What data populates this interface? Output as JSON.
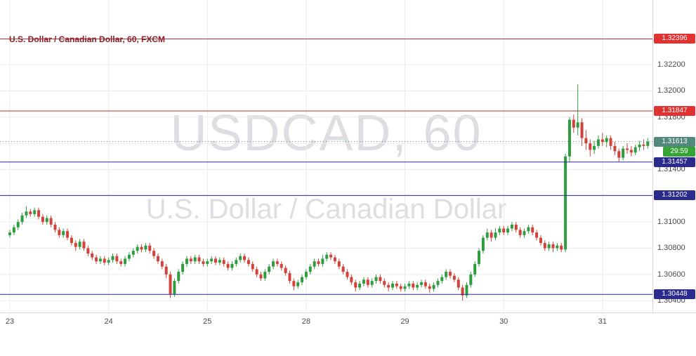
{
  "header": {
    "title": "U.S. Dollar / Canadian Dollar, 60, FXCM"
  },
  "watermark": {
    "line1": "USDCAD, 60",
    "line2": "U.S. Dollar / Canadian Dollar"
  },
  "colors": {
    "up_candle": "#2f9c3f",
    "down_candle": "#d2423a",
    "resistance_line": "#b03232",
    "resistance_badge": "#e13232",
    "support_line": "#2b2b8e",
    "support_badge": "#2b2b8e",
    "current_line": "#4d8b80",
    "current_badge": "#52897c",
    "countdown_badge": "#36a336",
    "grid": "#ececec",
    "axis_text": "#4a4a4a",
    "title_text": "#8a1f28",
    "watermark": "#dcdee1"
  },
  "chart_data": {
    "type": "candlestick",
    "symbol": "USDCAD",
    "timeframe": "60",
    "exchange": "FXCM",
    "title": "U.S. Dollar / Canadian Dollar, 60, FXCM",
    "price_range": [
      1.3031,
      1.32693
    ],
    "y_ticks": [
      1.322,
      1.32,
      1.318,
      1.316,
      1.314,
      1.312,
      1.31,
      1.308,
      1.306,
      1.304
    ],
    "x_tick_labels": [
      "23",
      "24",
      "25",
      "28",
      "29",
      "30",
      "31"
    ],
    "x_tick_indices": [
      0,
      24,
      48,
      72,
      96,
      120,
      144
    ],
    "levels": [
      {
        "label": "1.32396",
        "price": 1.32396,
        "type": "resistance"
      },
      {
        "label": "1.31847",
        "price": 1.31847,
        "type": "resistance"
      },
      {
        "label": "1.31457",
        "price": 1.31457,
        "type": "support"
      },
      {
        "label": "1.31202",
        "price": 1.31202,
        "type": "support"
      },
      {
        "label": "1.30448",
        "price": 1.30448,
        "type": "support"
      }
    ],
    "current_price": {
      "value": 1.31613,
      "label": "1.31613",
      "countdown": "29:59"
    },
    "candles": [
      [
        1.309,
        1.3094,
        1.3088,
        1.3092
      ],
      [
        1.3092,
        1.3098,
        1.309,
        1.3096
      ],
      [
        1.3096,
        1.3102,
        1.3094,
        1.31
      ],
      [
        1.31,
        1.3107,
        1.3098,
        1.3105
      ],
      [
        1.3105,
        1.3112,
        1.3103,
        1.3108
      ],
      [
        1.3108,
        1.311,
        1.3104,
        1.3106
      ],
      [
        1.3106,
        1.3111,
        1.3104,
        1.3109
      ],
      [
        1.3109,
        1.3111,
        1.3102,
        1.3104
      ],
      [
        1.3104,
        1.3106,
        1.3098,
        1.31
      ],
      [
        1.31,
        1.3105,
        1.3098,
        1.3103
      ],
      [
        1.3103,
        1.3105,
        1.3096,
        1.3098
      ],
      [
        1.3098,
        1.31,
        1.3092,
        1.3094
      ],
      [
        1.3094,
        1.3096,
        1.3088,
        1.309
      ],
      [
        1.309,
        1.3095,
        1.3088,
        1.3093
      ],
      [
        1.3093,
        1.3095,
        1.3086,
        1.3088
      ],
      [
        1.3088,
        1.309,
        1.3082,
        1.3084
      ],
      [
        1.3084,
        1.3086,
        1.3078,
        1.3081
      ],
      [
        1.3081,
        1.3087,
        1.3079,
        1.3085
      ],
      [
        1.3085,
        1.3087,
        1.3078,
        1.308
      ],
      [
        1.308,
        1.3082,
        1.3074,
        1.3076
      ],
      [
        1.3076,
        1.3078,
        1.3071,
        1.3073
      ],
      [
        1.3073,
        1.3075,
        1.3068,
        1.307
      ],
      [
        1.307,
        1.3074,
        1.3068,
        1.3072
      ],
      [
        1.3072,
        1.3074,
        1.3067,
        1.3069
      ],
      [
        1.3069,
        1.3073,
        1.3067,
        1.3071
      ],
      [
        1.3071,
        1.3076,
        1.3069,
        1.3074
      ],
      [
        1.3074,
        1.3076,
        1.3068,
        1.307
      ],
      [
        1.307,
        1.3072,
        1.3066,
        1.3068
      ],
      [
        1.3068,
        1.3074,
        1.3066,
        1.3072
      ],
      [
        1.3072,
        1.3077,
        1.307,
        1.3075
      ],
      [
        1.3075,
        1.308,
        1.3073,
        1.3078
      ],
      [
        1.3078,
        1.3083,
        1.3076,
        1.3081
      ],
      [
        1.3081,
        1.3083,
        1.3077,
        1.3079
      ],
      [
        1.3079,
        1.3084,
        1.3077,
        1.3082
      ],
      [
        1.3082,
        1.3084,
        1.3076,
        1.3078
      ],
      [
        1.3078,
        1.308,
        1.3072,
        1.3074
      ],
      [
        1.3074,
        1.3076,
        1.3068,
        1.307
      ],
      [
        1.307,
        1.3072,
        1.3064,
        1.3066
      ],
      [
        1.3066,
        1.3068,
        1.3057,
        1.306
      ],
      [
        1.306,
        1.3062,
        1.3042,
        1.3045
      ],
      [
        1.3045,
        1.3057,
        1.3043,
        1.3055
      ],
      [
        1.3055,
        1.3064,
        1.3053,
        1.3062
      ],
      [
        1.3062,
        1.307,
        1.306,
        1.3068
      ],
      [
        1.3068,
        1.3074,
        1.3066,
        1.3072
      ],
      [
        1.3072,
        1.3074,
        1.3068,
        1.307
      ],
      [
        1.307,
        1.3075,
        1.3068,
        1.3073
      ],
      [
        1.3073,
        1.3075,
        1.3068,
        1.307
      ],
      [
        1.307,
        1.3072,
        1.3066,
        1.3068
      ],
      [
        1.3068,
        1.3072,
        1.3066,
        1.307
      ],
      [
        1.307,
        1.3074,
        1.3068,
        1.3072
      ],
      [
        1.3072,
        1.3074,
        1.3067,
        1.3069
      ],
      [
        1.3069,
        1.3073,
        1.3067,
        1.3071
      ],
      [
        1.3071,
        1.3073,
        1.3066,
        1.3068
      ],
      [
        1.3068,
        1.307,
        1.3063,
        1.3065
      ],
      [
        1.3065,
        1.307,
        1.3063,
        1.3068
      ],
      [
        1.3068,
        1.3073,
        1.3066,
        1.3071
      ],
      [
        1.3071,
        1.3076,
        1.3069,
        1.3074
      ],
      [
        1.3074,
        1.3076,
        1.3069,
        1.3071
      ],
      [
        1.3071,
        1.3073,
        1.3066,
        1.3068
      ],
      [
        1.3068,
        1.307,
        1.3062,
        1.3064
      ],
      [
        1.3064,
        1.3066,
        1.3058,
        1.306
      ],
      [
        1.306,
        1.3062,
        1.3055,
        1.3057
      ],
      [
        1.3057,
        1.3064,
        1.3055,
        1.3062
      ],
      [
        1.3062,
        1.3068,
        1.306,
        1.3066
      ],
      [
        1.3066,
        1.3072,
        1.3064,
        1.307
      ],
      [
        1.307,
        1.3072,
        1.3066,
        1.3068
      ],
      [
        1.3068,
        1.307,
        1.3063,
        1.3065
      ],
      [
        1.3065,
        1.3067,
        1.3059,
        1.3061
      ],
      [
        1.3061,
        1.3063,
        1.3053,
        1.3055
      ],
      [
        1.3055,
        1.3057,
        1.3048,
        1.3051
      ],
      [
        1.3051,
        1.3056,
        1.3049,
        1.3054
      ],
      [
        1.3054,
        1.306,
        1.3052,
        1.3058
      ],
      [
        1.3058,
        1.3064,
        1.3056,
        1.3062
      ],
      [
        1.3062,
        1.3068,
        1.306,
        1.3066
      ],
      [
        1.3066,
        1.3072,
        1.3064,
        1.307
      ],
      [
        1.307,
        1.3072,
        1.3066,
        1.3068
      ],
      [
        1.3068,
        1.3075,
        1.3066,
        1.3072
      ],
      [
        1.3072,
        1.3077,
        1.307,
        1.3075
      ],
      [
        1.3075,
        1.3077,
        1.3071,
        1.3073
      ],
      [
        1.3073,
        1.3075,
        1.3068,
        1.307
      ],
      [
        1.307,
        1.3072,
        1.3064,
        1.3066
      ],
      [
        1.3066,
        1.3068,
        1.306,
        1.3062
      ],
      [
        1.3062,
        1.3064,
        1.3056,
        1.3058
      ],
      [
        1.3058,
        1.306,
        1.3052,
        1.3054
      ],
      [
        1.3054,
        1.3056,
        1.3047,
        1.305
      ],
      [
        1.305,
        1.3055,
        1.3048,
        1.3053
      ],
      [
        1.3053,
        1.3058,
        1.3051,
        1.3056
      ],
      [
        1.3056,
        1.3058,
        1.305,
        1.3052
      ],
      [
        1.3052,
        1.3057,
        1.305,
        1.3055
      ],
      [
        1.3055,
        1.306,
        1.3053,
        1.3058
      ],
      [
        1.3058,
        1.306,
        1.3053,
        1.3055
      ],
      [
        1.3055,
        1.3057,
        1.305,
        1.3052
      ],
      [
        1.3052,
        1.3054,
        1.3047,
        1.305
      ],
      [
        1.305,
        1.3055,
        1.3048,
        1.3053
      ],
      [
        1.3053,
        1.3055,
        1.3049,
        1.3051
      ],
      [
        1.3051,
        1.3053,
        1.3047,
        1.3049
      ],
      [
        1.3049,
        1.3053,
        1.3047,
        1.3051
      ],
      [
        1.3051,
        1.3055,
        1.3049,
        1.3053
      ],
      [
        1.3053,
        1.3055,
        1.3048,
        1.305
      ],
      [
        1.305,
        1.3054,
        1.3048,
        1.3052
      ],
      [
        1.3052,
        1.3056,
        1.305,
        1.3054
      ],
      [
        1.3054,
        1.3056,
        1.3049,
        1.3051
      ],
      [
        1.3051,
        1.3053,
        1.3046,
        1.3049
      ],
      [
        1.3049,
        1.3054,
        1.3047,
        1.3052
      ],
      [
        1.3052,
        1.3057,
        1.305,
        1.3055
      ],
      [
        1.3055,
        1.306,
        1.3053,
        1.3058
      ],
      [
        1.3058,
        1.3064,
        1.3056,
        1.3062
      ],
      [
        1.3062,
        1.3064,
        1.3057,
        1.3059
      ],
      [
        1.3059,
        1.3061,
        1.3054,
        1.3056
      ],
      [
        1.3056,
        1.3058,
        1.3048,
        1.305
      ],
      [
        1.305,
        1.3052,
        1.304,
        1.3044
      ],
      [
        1.3044,
        1.3054,
        1.3042,
        1.3052
      ],
      [
        1.3052,
        1.3062,
        1.305,
        1.306
      ],
      [
        1.306,
        1.307,
        1.3058,
        1.3068
      ],
      [
        1.3068,
        1.308,
        1.3066,
        1.3078
      ],
      [
        1.3078,
        1.309,
        1.3076,
        1.3088
      ],
      [
        1.3088,
        1.3095,
        1.3086,
        1.3092
      ],
      [
        1.3092,
        1.3094,
        1.3085,
        1.3088
      ],
      [
        1.3088,
        1.3095,
        1.3086,
        1.3092
      ],
      [
        1.3092,
        1.3097,
        1.309,
        1.3095
      ],
      [
        1.3095,
        1.3097,
        1.309,
        1.3092
      ],
      [
        1.3092,
        1.3097,
        1.309,
        1.3095
      ],
      [
        1.3095,
        1.31,
        1.3093,
        1.3098
      ],
      [
        1.3098,
        1.31,
        1.3092,
        1.3094
      ],
      [
        1.3094,
        1.3096,
        1.3088,
        1.309
      ],
      [
        1.309,
        1.3095,
        1.3088,
        1.3093
      ],
      [
        1.3093,
        1.3098,
        1.3091,
        1.3096
      ],
      [
        1.3096,
        1.3098,
        1.309,
        1.3092
      ],
      [
        1.3092,
        1.3094,
        1.3086,
        1.3088
      ],
      [
        1.3088,
        1.309,
        1.3082,
        1.3084
      ],
      [
        1.3084,
        1.3086,
        1.3078,
        1.308
      ],
      [
        1.308,
        1.3085,
        1.3078,
        1.3083
      ],
      [
        1.3083,
        1.3085,
        1.3077,
        1.308
      ],
      [
        1.308,
        1.3084,
        1.3078,
        1.3082
      ],
      [
        1.3082,
        1.3084,
        1.3077,
        1.3079
      ],
      [
        1.3079,
        1.3152,
        1.3077,
        1.315
      ],
      [
        1.315,
        1.318,
        1.3146,
        1.3178
      ],
      [
        1.3178,
        1.3182,
        1.3168,
        1.3172
      ],
      [
        1.3172,
        1.3205,
        1.3166,
        1.3176
      ],
      [
        1.3176,
        1.3179,
        1.3158,
        1.3164
      ],
      [
        1.3164,
        1.317,
        1.3155,
        1.316
      ],
      [
        1.316,
        1.3163,
        1.315,
        1.3155
      ],
      [
        1.3155,
        1.3162,
        1.3152,
        1.3158
      ],
      [
        1.3158,
        1.3166,
        1.3156,
        1.3163
      ],
      [
        1.3163,
        1.3168,
        1.3158,
        1.3161
      ],
      [
        1.3161,
        1.3166,
        1.3157,
        1.3164
      ],
      [
        1.3164,
        1.3166,
        1.3155,
        1.3158
      ],
      [
        1.3158,
        1.3161,
        1.3151,
        1.3154
      ],
      [
        1.3154,
        1.3156,
        1.3146,
        1.3149
      ],
      [
        1.3149,
        1.3158,
        1.3147,
        1.3156
      ],
      [
        1.3156,
        1.316,
        1.3152,
        1.3155
      ],
      [
        1.3155,
        1.3158,
        1.315,
        1.3153
      ],
      [
        1.3153,
        1.3159,
        1.3151,
        1.3157
      ],
      [
        1.3157,
        1.3162,
        1.3154,
        1.3159
      ],
      [
        1.3159,
        1.3163,
        1.3155,
        1.3158
      ],
      [
        1.3158,
        1.3164,
        1.3156,
        1.31613
      ]
    ]
  }
}
